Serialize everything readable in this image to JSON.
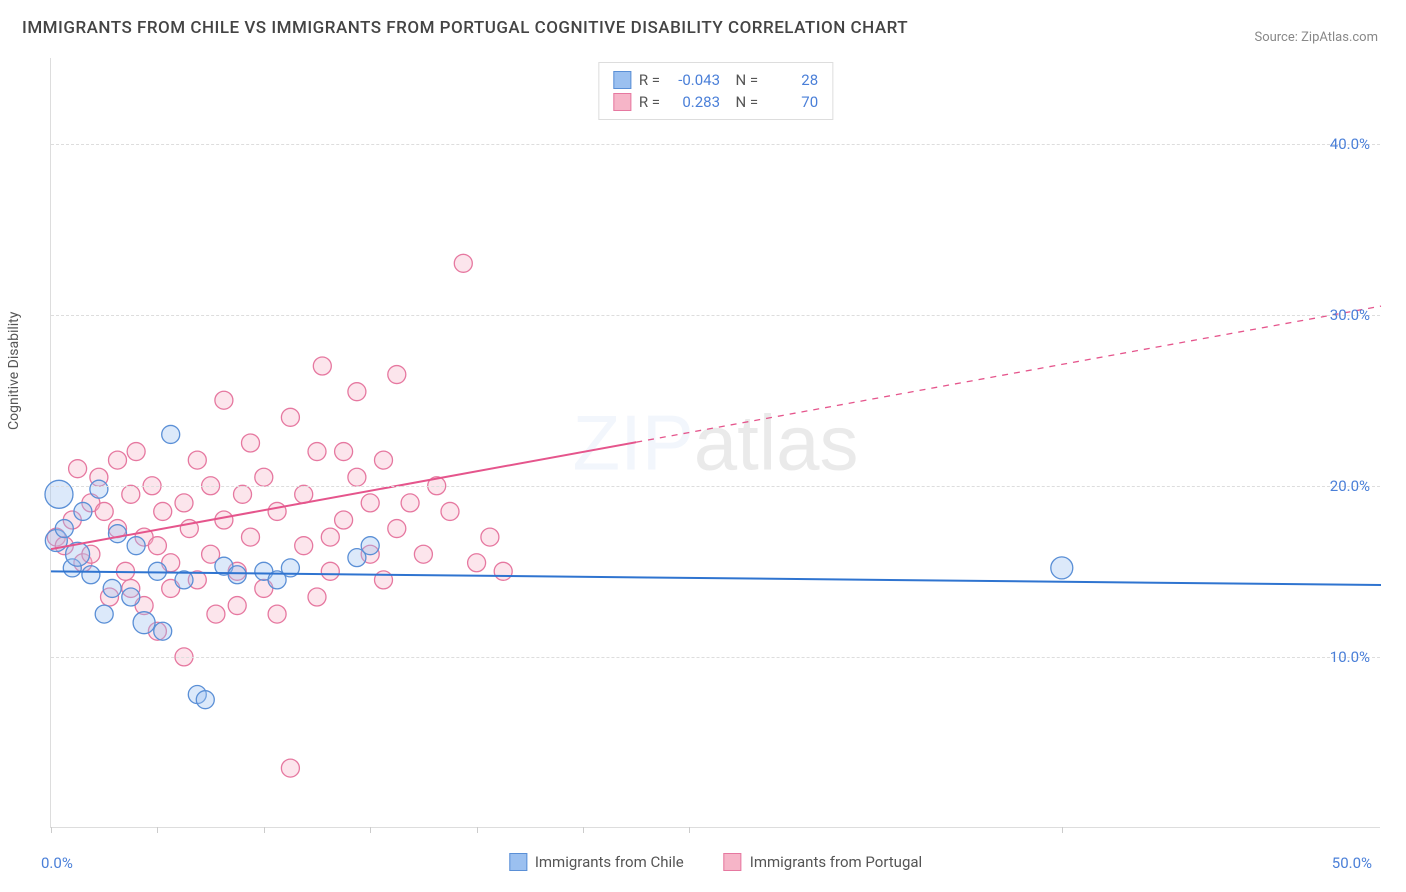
{
  "title": "IMMIGRANTS FROM CHILE VS IMMIGRANTS FROM PORTUGAL COGNITIVE DISABILITY CORRELATION CHART",
  "source_label": "Source: ZipAtlas.com",
  "watermark": "ZIPatlas",
  "ylabel": "Cognitive Disability",
  "chart": {
    "type": "scatter",
    "background_color": "#ffffff",
    "grid_color": "#dddddd",
    "grid_dash": "4,4",
    "xlim": [
      0,
      50
    ],
    "ylim": [
      0,
      45
    ],
    "xtick_positions": [
      0,
      4,
      8,
      12,
      16,
      20,
      24,
      38
    ],
    "xtick_labels_visible": {
      "0": "0.0%",
      "50": "50.0%"
    },
    "ytick_positions": [
      10,
      20,
      30,
      40
    ],
    "ytick_labels": [
      "10.0%",
      "20.0%",
      "30.0%",
      "40.0%"
    ],
    "marker_radius": 9,
    "marker_fill_opacity": 0.35,
    "marker_stroke_width": 1.3,
    "line_width": 2,
    "series": [
      {
        "name": "Immigrants from Chile",
        "color_fill": "#9bc0f0",
        "color_stroke": "#5a8fd6",
        "line_color": "#2f74d0",
        "R": "-0.043",
        "N": "28",
        "regression": {
          "x1": 0,
          "y1": 15.0,
          "x2": 50,
          "y2": 14.2,
          "solid_until_x": 50,
          "dashed": false
        },
        "points": [
          [
            0.3,
            19.5,
            14
          ],
          [
            0.2,
            16.8,
            11
          ],
          [
            0.5,
            17.5,
            9
          ],
          [
            0.8,
            15.2,
            9
          ],
          [
            1.0,
            16.0,
            12
          ],
          [
            1.2,
            18.5,
            9
          ],
          [
            1.5,
            14.8,
            9
          ],
          [
            1.8,
            19.8,
            9
          ],
          [
            2.0,
            12.5,
            9
          ],
          [
            2.3,
            14.0,
            9
          ],
          [
            2.5,
            17.2,
            9
          ],
          [
            3.0,
            13.5,
            9
          ],
          [
            3.2,
            16.5,
            9
          ],
          [
            3.5,
            12.0,
            11
          ],
          [
            4.0,
            15.0,
            9
          ],
          [
            4.2,
            11.5,
            9
          ],
          [
            4.5,
            23.0,
            9
          ],
          [
            5.0,
            14.5,
            9
          ],
          [
            5.5,
            7.8,
            9
          ],
          [
            5.8,
            7.5,
            9
          ],
          [
            6.5,
            15.3,
            9
          ],
          [
            7.0,
            14.8,
            9
          ],
          [
            8.0,
            15.0,
            9
          ],
          [
            8.5,
            14.5,
            9
          ],
          [
            9.0,
            15.2,
            9
          ],
          [
            11.5,
            15.8,
            9
          ],
          [
            12.0,
            16.5,
            9
          ],
          [
            38.0,
            15.2,
            11
          ]
        ]
      },
      {
        "name": "Immigrants from Portugal",
        "color_fill": "#f6b5c8",
        "color_stroke": "#e678a0",
        "line_color": "#e5558c",
        "R": "0.283",
        "N": "70",
        "regression": {
          "x1": 0,
          "y1": 16.3,
          "x2": 50,
          "y2": 30.5,
          "solid_until_x": 22,
          "dashed": true
        },
        "points": [
          [
            0.2,
            17.0,
            9
          ],
          [
            0.5,
            16.5,
            9
          ],
          [
            0.8,
            18.0,
            9
          ],
          [
            1.0,
            21.0,
            9
          ],
          [
            1.2,
            15.5,
            9
          ],
          [
            1.5,
            19.0,
            9
          ],
          [
            1.5,
            16.0,
            9
          ],
          [
            1.8,
            20.5,
            9
          ],
          [
            2.0,
            18.5,
            9
          ],
          [
            2.2,
            13.5,
            9
          ],
          [
            2.5,
            17.5,
            9
          ],
          [
            2.5,
            21.5,
            9
          ],
          [
            2.8,
            15.0,
            9
          ],
          [
            3.0,
            19.5,
            9
          ],
          [
            3.0,
            14.0,
            9
          ],
          [
            3.2,
            22.0,
            9
          ],
          [
            3.5,
            17.0,
            9
          ],
          [
            3.5,
            13.0,
            9
          ],
          [
            3.8,
            20.0,
            9
          ],
          [
            4.0,
            16.5,
            9
          ],
          [
            4.0,
            11.5,
            9
          ],
          [
            4.2,
            18.5,
            9
          ],
          [
            4.5,
            15.5,
            9
          ],
          [
            4.5,
            14.0,
            9
          ],
          [
            5.0,
            19.0,
            9
          ],
          [
            5.0,
            10.0,
            9
          ],
          [
            5.2,
            17.5,
            9
          ],
          [
            5.5,
            21.5,
            9
          ],
          [
            5.5,
            14.5,
            9
          ],
          [
            6.0,
            16.0,
            9
          ],
          [
            6.0,
            20.0,
            9
          ],
          [
            6.2,
            12.5,
            9
          ],
          [
            6.5,
            18.0,
            9
          ],
          [
            6.5,
            25.0,
            9
          ],
          [
            7.0,
            15.0,
            9
          ],
          [
            7.0,
            13.0,
            9
          ],
          [
            7.2,
            19.5,
            9
          ],
          [
            7.5,
            17.0,
            9
          ],
          [
            7.5,
            22.5,
            9
          ],
          [
            8.0,
            14.0,
            9
          ],
          [
            8.0,
            20.5,
            9
          ],
          [
            8.5,
            12.5,
            9
          ],
          [
            8.5,
            18.5,
            9
          ],
          [
            9.0,
            3.5,
            9
          ],
          [
            9.0,
            24.0,
            9
          ],
          [
            9.5,
            16.5,
            9
          ],
          [
            9.5,
            19.5,
            9
          ],
          [
            10.0,
            13.5,
            9
          ],
          [
            10.0,
            22.0,
            9
          ],
          [
            10.2,
            27.0,
            9
          ],
          [
            10.5,
            17.0,
            9
          ],
          [
            10.5,
            15.0,
            9
          ],
          [
            11.0,
            22.0,
            9
          ],
          [
            11.0,
            18.0,
            9
          ],
          [
            11.5,
            20.5,
            9
          ],
          [
            11.5,
            25.5,
            9
          ],
          [
            12.0,
            16.0,
            9
          ],
          [
            12.0,
            19.0,
            9
          ],
          [
            12.5,
            14.5,
            9
          ],
          [
            12.5,
            21.5,
            9
          ],
          [
            13.0,
            17.5,
            9
          ],
          [
            13.0,
            26.5,
            9
          ],
          [
            13.5,
            19.0,
            9
          ],
          [
            14.0,
            16.0,
            9
          ],
          [
            14.5,
            20.0,
            9
          ],
          [
            15.0,
            18.5,
            9
          ],
          [
            15.5,
            33.0,
            9
          ],
          [
            16.0,
            15.5,
            9
          ],
          [
            16.5,
            17.0,
            9
          ],
          [
            17.0,
            15.0,
            9
          ]
        ]
      }
    ]
  },
  "colors": {
    "axis_text": "#4a7fd8",
    "title_text": "#444444",
    "label_text": "#555555",
    "source_text": "#888888"
  }
}
